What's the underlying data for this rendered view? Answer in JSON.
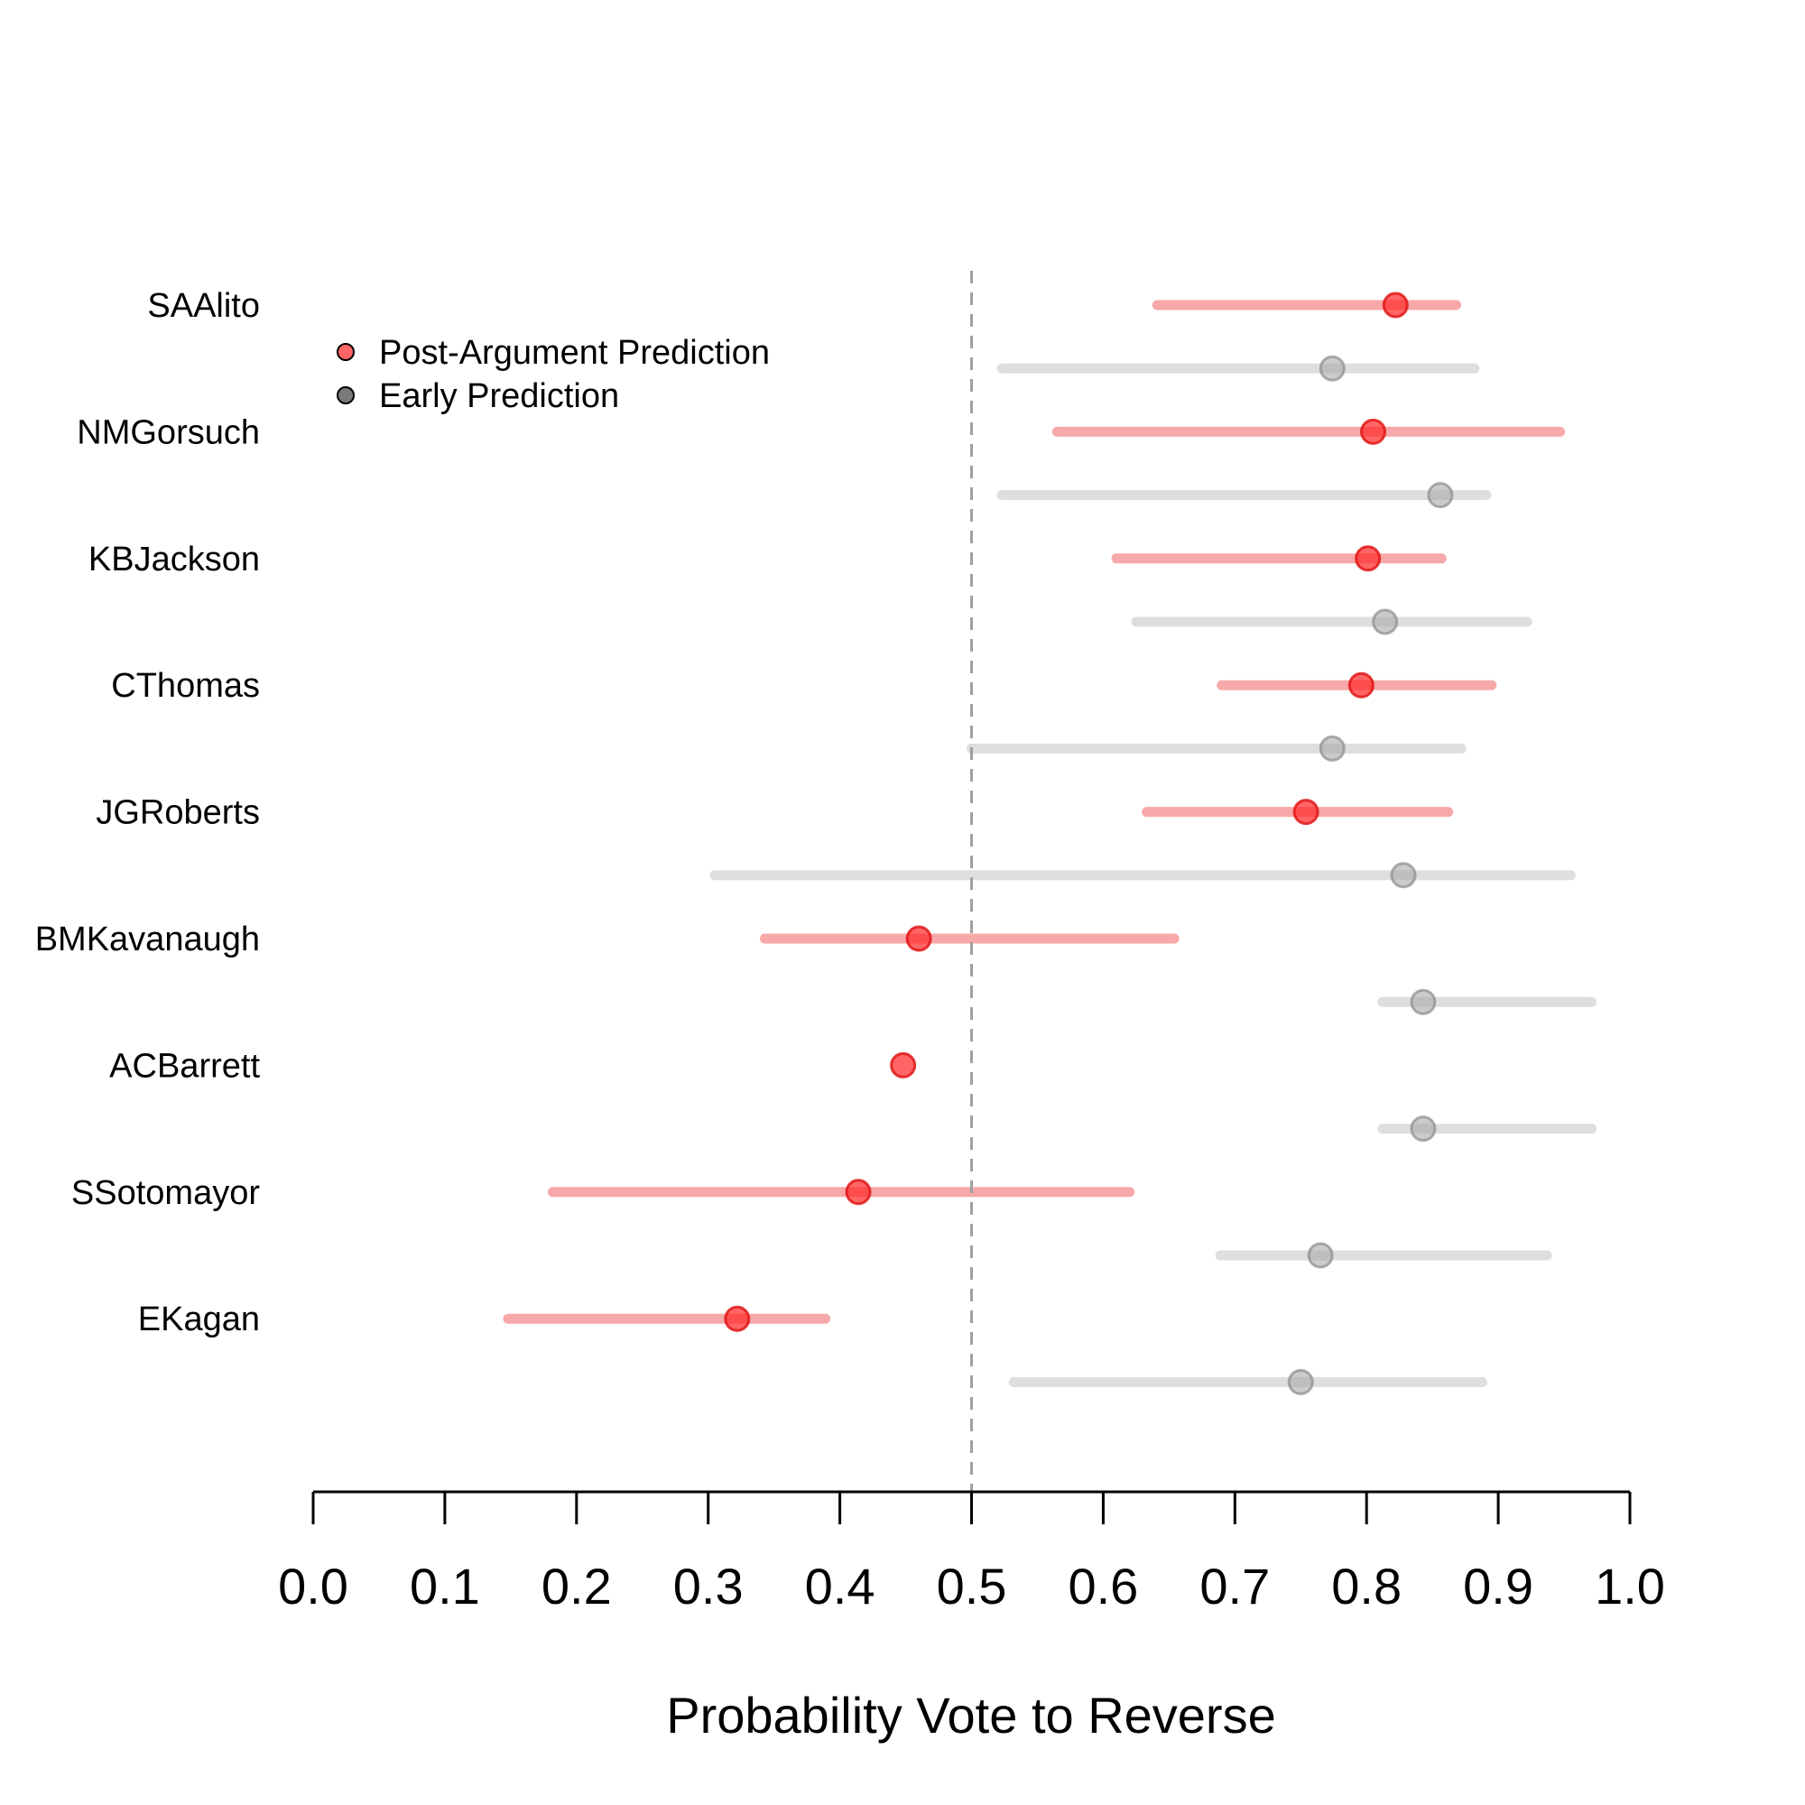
{
  "chart_data": {
    "type": "forest",
    "xlabel": "Probability Vote to Reverse",
    "xlim": [
      0.0,
      1.0
    ],
    "ticks": [
      "0.0",
      "0.1",
      "0.2",
      "0.3",
      "0.4",
      "0.5",
      "0.6",
      "0.7",
      "0.8",
      "0.9",
      "1.0"
    ],
    "reference_line": 0.5,
    "legend": {
      "placement": "top-left",
      "post": "Post-Argument Prediction",
      "early": "Early Prediction"
    },
    "colors": {
      "post_point": "#ff2a2a",
      "post_interval": "#f7a8a8",
      "early_point": "#a9a9a9",
      "early_interval": "#dedede",
      "reference": "#a0a0a0",
      "axis": "#000000"
    },
    "justices": [
      {
        "name": "SAAlito",
        "post": {
          "point": 0.822,
          "low": 0.641,
          "high": 0.868
        },
        "early": {
          "point": 0.774,
          "low": 0.523,
          "high": 0.882
        }
      },
      {
        "name": "NMGorsuch",
        "post": {
          "point": 0.805,
          "low": 0.565,
          "high": 0.947
        },
        "early": {
          "point": 0.856,
          "low": 0.523,
          "high": 0.891
        }
      },
      {
        "name": "KBJackson",
        "post": {
          "point": 0.801,
          "low": 0.61,
          "high": 0.857
        },
        "early": {
          "point": 0.814,
          "low": 0.625,
          "high": 0.922
        }
      },
      {
        "name": "CThomas",
        "post": {
          "point": 0.796,
          "low": 0.69,
          "high": 0.895
        },
        "early": {
          "point": 0.774,
          "low": 0.5,
          "high": 0.872
        }
      },
      {
        "name": "JGRoberts",
        "post": {
          "point": 0.754,
          "low": 0.633,
          "high": 0.862
        },
        "early": {
          "point": 0.828,
          "low": 0.305,
          "high": 0.955
        }
      },
      {
        "name": "BMKavanaugh",
        "post": {
          "point": 0.46,
          "low": 0.343,
          "high": 0.654
        },
        "early": {
          "point": 0.843,
          "low": 0.812,
          "high": 0.971
        }
      },
      {
        "name": "ACBarrett",
        "post": {
          "point": 0.448,
          "low": null,
          "high": null
        },
        "early": {
          "point": 0.843,
          "low": 0.812,
          "high": 0.971
        }
      },
      {
        "name": "SSotomayor",
        "post": {
          "point": 0.414,
          "low": 0.182,
          "high": 0.62
        },
        "early": {
          "point": 0.765,
          "low": 0.689,
          "high": 0.937
        }
      },
      {
        "name": "EKagan",
        "post": {
          "point": 0.322,
          "low": 0.148,
          "high": 0.389
        },
        "early": {
          "point": 0.75,
          "low": 0.532,
          "high": 0.888
        }
      }
    ]
  }
}
